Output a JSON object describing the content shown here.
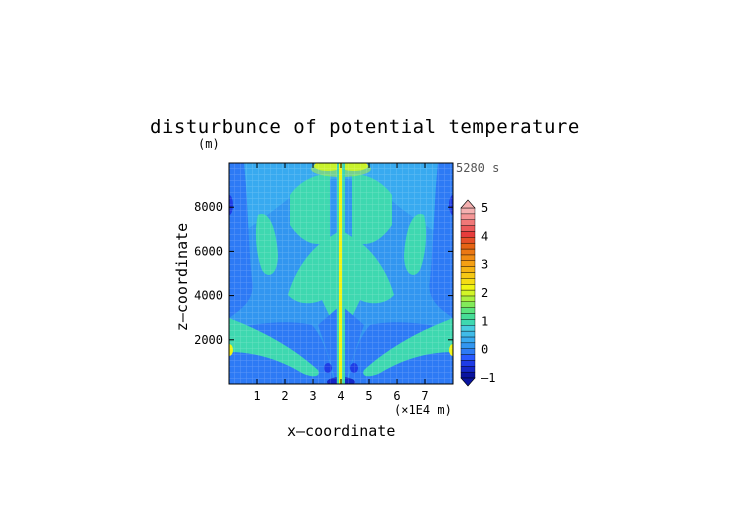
{
  "chart_data": {
    "type": "heatmap",
    "title": "disturbunce of potential temperature",
    "ylabel_unit": "(m)",
    "time_label": "5280 s",
    "xlabel": "x—coordinate",
    "ylabel": "z—coordinate",
    "x_unit": "(×1E4 m)",
    "xlim": [
      0,
      8
    ],
    "ylim": [
      0,
      10000
    ],
    "x_ticks": [
      "1",
      "2",
      "3",
      "4",
      "5",
      "6",
      "7"
    ],
    "y_ticks": [
      "2000",
      "4000",
      "6000",
      "8000"
    ],
    "colorbar": {
      "min": -1,
      "max": 5,
      "step": 0.25,
      "labels": [
        "5",
        "4",
        "3",
        "2",
        "1",
        "0",
        "–1"
      ],
      "colors": [
        "#0a14a0",
        "#1428c8",
        "#1e3ce6",
        "#285aff",
        "#2d7af5",
        "#3296f0",
        "#38aaf0",
        "#40bbe8",
        "#48cce0",
        "#3ed8b0",
        "#46dc96",
        "#5ae37e",
        "#82ea5a",
        "#aaf040",
        "#d2f528",
        "#f0f514",
        "#f5dc14",
        "#f5c814",
        "#f5b414",
        "#f5a014",
        "#f08c14",
        "#eb7814",
        "#e66414",
        "#e65028",
        "#e63c3c",
        "#eb5a5a",
        "#f07878",
        "#f59696",
        "#f5b0b0"
      ]
    }
  }
}
